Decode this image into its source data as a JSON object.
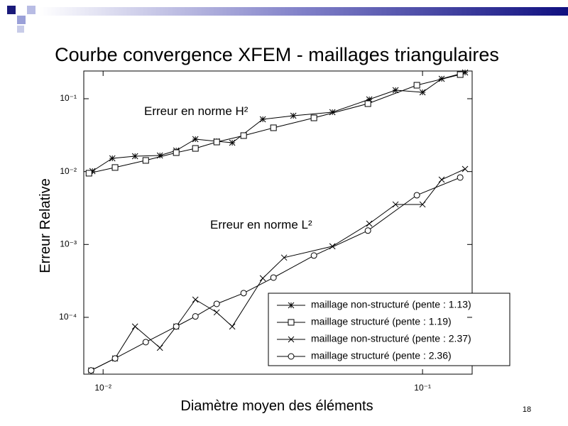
{
  "chart_data": {
    "type": "line",
    "title": "Courbe convergence XFEM - maillages triangulaires",
    "x_label": "Diamètre moyen des éléments",
    "y_label": "Erreur Relative",
    "annotations": [
      "Erreur en norme H²",
      "Erreur en norme L²"
    ],
    "page_number": "18",
    "log_x": true,
    "log_y": true,
    "xlim": [
      0.0087,
      0.143
    ],
    "ylim": [
      1.66e-05,
      0.24
    ],
    "xticks": [
      {
        "value": 0.01,
        "label": "10⁻²"
      },
      {
        "value": 0.1,
        "label": "10⁻¹"
      }
    ],
    "yticks": [
      {
        "value": 0.0001,
        "label": "10⁻⁴"
      },
      {
        "value": 0.001,
        "label": "10⁻³"
      },
      {
        "value": 0.01,
        "label": "10⁻²"
      },
      {
        "value": 0.1,
        "label": "10⁻¹"
      }
    ],
    "series": [
      {
        "name": "maillage non-structuré (pente : 1.13)",
        "color": "#000000",
        "marker": "asterisk",
        "x": [
          0.00926,
          0.01069,
          0.01259,
          0.01506,
          0.01694,
          0.01945,
          0.02268,
          0.02537,
          0.03162,
          0.03941,
          0.05222,
          0.06813,
          0.08233,
          0.1,
          0.1148,
          0.1359
        ],
        "values": [
          0.01016,
          0.0152,
          0.01626,
          0.01663,
          0.01946,
          0.02786,
          0.02606,
          0.02488,
          0.05224,
          0.05839,
          0.06531,
          0.09776,
          0.1309,
          0.1225,
          0.1875,
          0.229
        ]
      },
      {
        "name": "maillage structuré (pente : 1.19)",
        "color": "#000000",
        "marker": "square",
        "x": [
          0.00903,
          0.0109,
          0.0136,
          0.01694,
          0.01945,
          0.02268,
          0.02754,
          0.03415,
          0.04571,
          0.06745,
          0.096,
          0.1312
        ],
        "values": [
          0.0095,
          0.01138,
          0.01423,
          0.0182,
          0.0208,
          0.02546,
          0.03118,
          0.0399,
          0.05457,
          0.0855,
          0.1531,
          0.2143
        ]
      },
      {
        "name": "maillage non-structuré (pente : 2.37)",
        "color": "#000000",
        "marker": "x",
        "x": [
          0.00917,
          0.0109,
          0.01259,
          0.01506,
          0.01694,
          0.01945,
          0.02268,
          0.02537,
          0.03162,
          0.03687,
          0.05222,
          0.06813,
          0.08233,
          0.1,
          0.1148,
          0.1359
        ],
        "values": [
          1.87e-05,
          2.73e-05,
          7.49e-05,
          3.82e-05,
          7.49e-05,
          0.000175,
          0.000117,
          7.49e-05,
          0.000344,
          0.00066,
          0.000944,
          0.00193,
          0.00354,
          0.00354,
          0.00776,
          0.01086
        ]
      },
      {
        "name": "maillage structuré (pente : 2.36)",
        "color": "#000000",
        "marker": "circle",
        "x": [
          0.00917,
          0.0109,
          0.0136,
          0.01694,
          0.01945,
          0.02268,
          0.02754,
          0.03415,
          0.04571,
          0.06745,
          0.096,
          0.1312
        ],
        "values": [
          1.87e-05,
          2.73e-05,
          4.57e-05,
          7.49e-05,
          0.000103,
          0.000153,
          0.000215,
          0.000351,
          0.000705,
          0.00155,
          0.00474,
          0.0083
        ]
      }
    ]
  }
}
